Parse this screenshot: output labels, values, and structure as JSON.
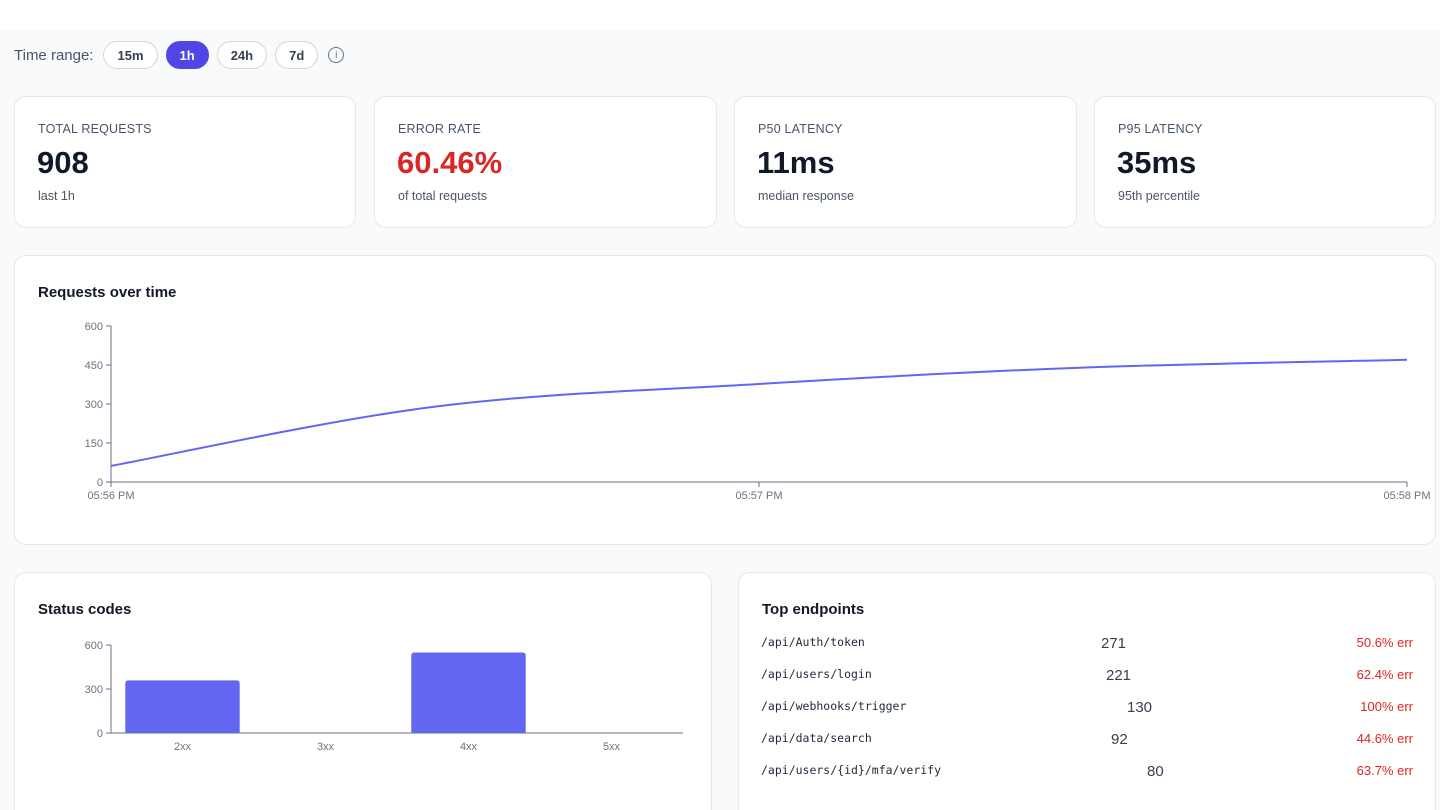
{
  "time_range": {
    "label": "Time range:",
    "options": [
      "15m",
      "1h",
      "24h",
      "7d"
    ],
    "active": "1h",
    "info_icon": "info-circle-icon"
  },
  "stats": [
    {
      "label": "TOTAL REQUESTS",
      "value": "908",
      "sub": "last 1h"
    },
    {
      "label": "ERROR RATE",
      "value": "60.46%",
      "sub": "of total requests",
      "color": "#dc2626"
    },
    {
      "label": "P50 LATENCY",
      "value": "11ms",
      "sub": "median response"
    },
    {
      "label": "P95 LATENCY",
      "value": "35ms",
      "sub": "95th percentile"
    }
  ],
  "requests_chart": {
    "title": "Requests over time",
    "chart_data": {
      "type": "line",
      "x": [
        "05:56 PM",
        "05:56:30 PM",
        "05:57 PM",
        "05:57:30 PM",
        "05:58 PM"
      ],
      "x_ticks": [
        "05:56 PM",
        "05:57 PM",
        "05:58 PM"
      ],
      "y_ticks": [
        "0",
        "150",
        "300",
        "450",
        "600"
      ],
      "ylim": [
        0,
        600
      ],
      "series": [
        {
          "values": [
            62,
            290,
            377,
            440,
            470
          ]
        }
      ],
      "color": "#6366f1",
      "grid": false
    }
  },
  "status_chart": {
    "title": "Status codes",
    "chart_data": {
      "type": "bar",
      "categories": [
        "2xx",
        "3xx",
        "4xx",
        "5xx"
      ],
      "values": [
        359,
        0,
        549,
        0
      ],
      "y_ticks": [
        "0",
        "300",
        "600"
      ],
      "ylim": [
        0,
        600
      ],
      "color": "#6366f1"
    }
  },
  "endpoints": {
    "title": "Top endpoints",
    "rows": [
      {
        "path": "/api/Auth/token",
        "count": "271",
        "err": "50.6% err"
      },
      {
        "path": "/api/users/login",
        "count": "221",
        "err": "62.4% err"
      },
      {
        "path": "/api/webhooks/trigger",
        "count": "130",
        "err": "100% err"
      },
      {
        "path": "/api/data/search",
        "count": "92",
        "err": "44.6% err"
      },
      {
        "path": "/api/users/{id}/mfa/verify",
        "count": "80",
        "err": "63.7% err"
      }
    ]
  }
}
